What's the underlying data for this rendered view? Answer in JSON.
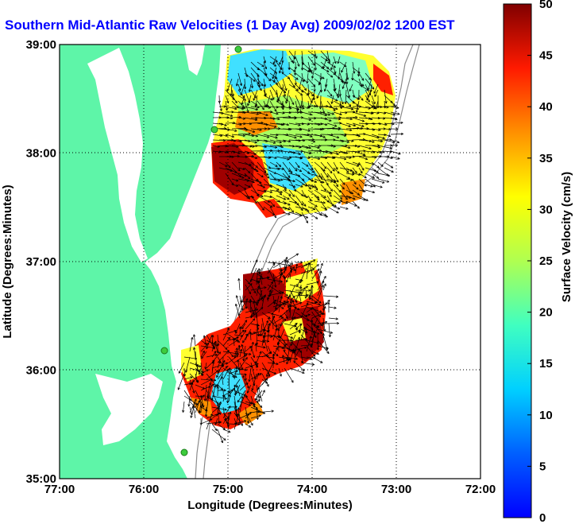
{
  "title": "Southern Mid-Atlantic Raw Velocities (1 Day Avg) 2009/02/02 1200 EST",
  "map": {
    "xlabel": "Longitude (Degrees:Minutes)",
    "ylabel": "Latitude (Degrees:Minutes)",
    "x_ticks": [
      "77:00",
      "76:00",
      "75:00",
      "74:00",
      "73:00",
      "72:00"
    ],
    "y_ticks": [
      "39:00",
      "38:00",
      "37:00",
      "36:00",
      "35:00"
    ],
    "x_range_deg_west": [
      77,
      72
    ],
    "y_range_deg_north": [
      35,
      39
    ],
    "grid": "dotted",
    "land_color": "#5ef5a8",
    "contour_color": "#8c8c8c",
    "station_color": "#3dcc3d"
  },
  "colorbar": {
    "label": "Surface Velocity (cm/s)",
    "ticks": [
      "0",
      "5",
      "10",
      "15",
      "20",
      "25",
      "30",
      "35",
      "40",
      "45",
      "50"
    ],
    "range": [
      0,
      50
    ],
    "colormap": "jet"
  }
}
